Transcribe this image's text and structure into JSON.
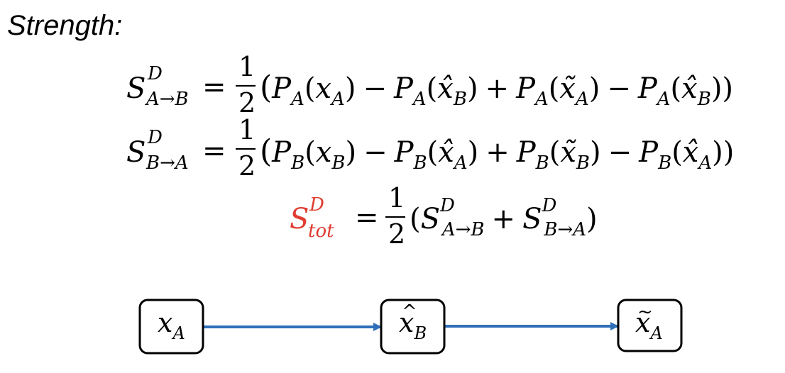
{
  "heading": "Strength:",
  "colors": {
    "text": "#000000",
    "highlight": "#e03c31",
    "arrow": "#2f6fba",
    "box_border": "#000000"
  },
  "equations": {
    "eq1": {
      "lhs": {
        "symbol": "S",
        "superscript": "D",
        "subscript": "A→B"
      },
      "equals": "=",
      "fraction": {
        "numerator": "1",
        "denominator": "2"
      },
      "terms": [
        "P_A(x_A)",
        "−",
        "P_A(x̂_B)",
        "+",
        "P_A(x̃_A)",
        "−",
        "P_A(x̂_B)"
      ]
    },
    "eq2": {
      "lhs": {
        "symbol": "S",
        "superscript": "D",
        "subscript": "B→A"
      },
      "equals": "=",
      "fraction": {
        "numerator": "1",
        "denominator": "2"
      },
      "terms": [
        "P_B(x_B)",
        "−",
        "P_B(x̂_A)",
        "+",
        "P_B(x̃_B)",
        "−",
        "P_B(x̂_A)"
      ]
    },
    "eq3": {
      "lhs": {
        "symbol": "S",
        "superscript": "D",
        "subscript": "tot",
        "color": "#e03c31"
      },
      "equals": "=",
      "fraction": {
        "numerator": "1",
        "denominator": "2"
      },
      "terms": [
        "S^D_A→B",
        "+",
        "S^D_B→A"
      ]
    }
  },
  "flow": {
    "nodes": [
      {
        "label": "x",
        "accent": "",
        "subscript": "A"
      },
      {
        "label": "x",
        "accent": "^",
        "subscript": "B"
      },
      {
        "label": "x",
        "accent": "~",
        "subscript": "A"
      }
    ],
    "edges": [
      {
        "from": 0,
        "to": 1
      },
      {
        "from": 1,
        "to": 2
      }
    ]
  }
}
